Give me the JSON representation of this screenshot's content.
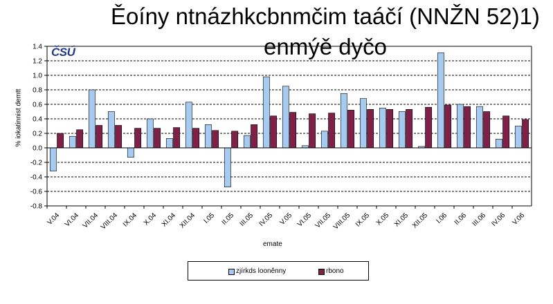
{
  "logo_text": "ČSÚ",
  "chart_data": {
    "type": "bar",
    "title_line1": "Ěoíny ntnázhkcbnmčim taáčí (NNŽN 52)1)",
    "title_line2": "enmýě dyčo",
    "xlabel": "emate",
    "ylabel": "% iokatinnist demtt",
    "ylim": [
      -0.8,
      1.4
    ],
    "ytick_step": 0.2,
    "grid": true,
    "legend_position": "bottom",
    "categories": [
      "V.04",
      "VI.04",
      "VII.04",
      "VIII.04",
      "IX.04",
      "X.04",
      "XI.04",
      "XII.04",
      "I.05",
      "II.05",
      "III.05",
      "IV.05",
      "V.05",
      "VI.05",
      "VII.05",
      "VIII.05",
      "IX.05",
      "X.05",
      "XI.05",
      "XII.05",
      "I.06",
      "II.06",
      "III.06",
      "IV.06",
      "V.06"
    ],
    "series": [
      {
        "name": "zjírkds looněnny",
        "color": "#a6caf0",
        "values": [
          -0.32,
          0.16,
          0.8,
          0.5,
          -0.13,
          0.4,
          0.13,
          0.63,
          0.32,
          -0.54,
          0.17,
          0.98,
          0.85,
          0.03,
          0.23,
          0.75,
          0.68,
          0.55,
          0.5,
          0.02,
          1.31,
          0.6,
          0.57,
          0.12,
          0.3
        ]
      },
      {
        "name": "rbono",
        "color": "#7f2048",
        "values": [
          0.2,
          0.25,
          0.31,
          0.31,
          0.27,
          0.27,
          0.28,
          0.27,
          0.24,
          0.23,
          0.32,
          0.44,
          0.49,
          0.47,
          0.48,
          0.52,
          0.53,
          0.53,
          0.53,
          0.56,
          0.59,
          0.57,
          0.5,
          0.44,
          0.39
        ]
      }
    ]
  }
}
